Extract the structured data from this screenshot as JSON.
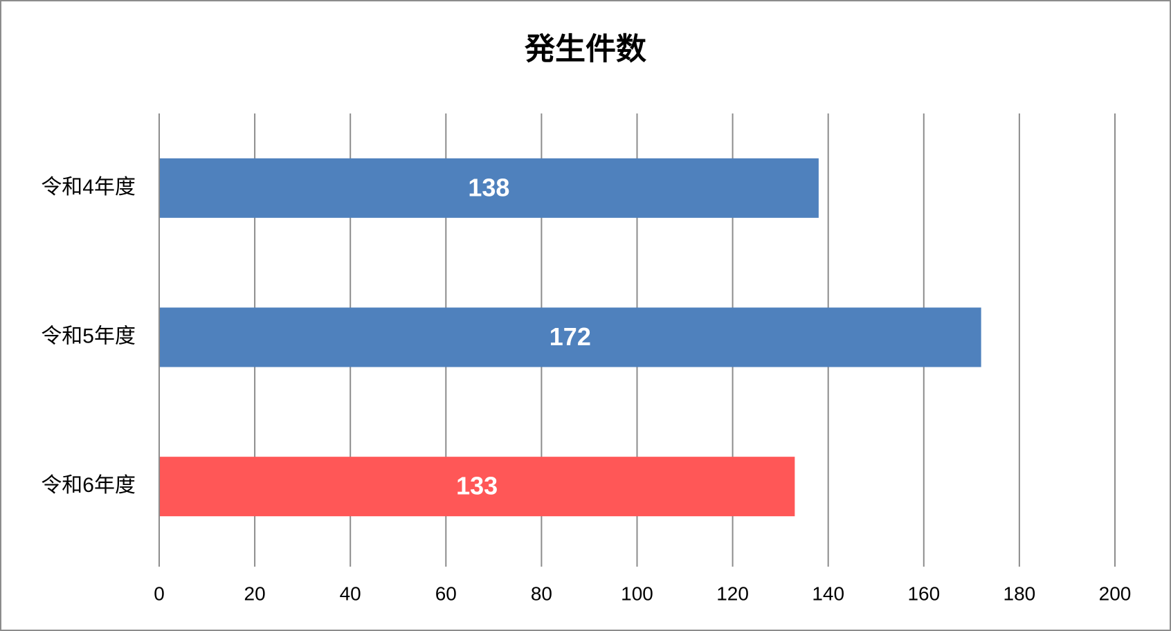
{
  "chart_data": {
    "type": "bar",
    "orientation": "horizontal",
    "title": "発生件数",
    "categories": [
      "令和4年度",
      "令和5年度",
      "令和6年度"
    ],
    "values": [
      138,
      172,
      133
    ],
    "colors": [
      "#4f81bd",
      "#4f81bd",
      "#ff5757"
    ],
    "xlim": [
      0,
      200
    ],
    "xticks": [
      0,
      20,
      40,
      60,
      80,
      100,
      120,
      140,
      160,
      180,
      200
    ],
    "grid": true
  }
}
